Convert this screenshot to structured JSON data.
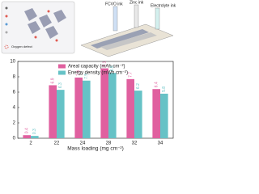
{
  "chart_data": {
    "type": "bar",
    "annotations": [
      "FCVO ink",
      "Zinc ink",
      "Electrolyte ink",
      "Oxygen defect"
    ],
    "x_label": "Mass loading (mg cm⁻²)",
    "categories": [
      "2",
      "22",
      "24",
      "28",
      "32",
      "34"
    ],
    "series": [
      {
        "name": "Areal capacity (mAh cm⁻²)",
        "color": "#e0609f",
        "values": [
          0.4,
          6.9,
          7.9,
          9.1,
          7.7,
          6.4
        ]
      },
      {
        "name": "Energy density (mWh cm⁻²)",
        "color": "#66c2c6",
        "values": [
          0.3,
          6.3,
          7.5,
          8.5,
          6.2,
          5.8
        ]
      }
    ],
    "ylim": [
      0,
      10
    ],
    "yticks": [
      0,
      2,
      4,
      6,
      8,
      10
    ],
    "legend": "top-left"
  }
}
